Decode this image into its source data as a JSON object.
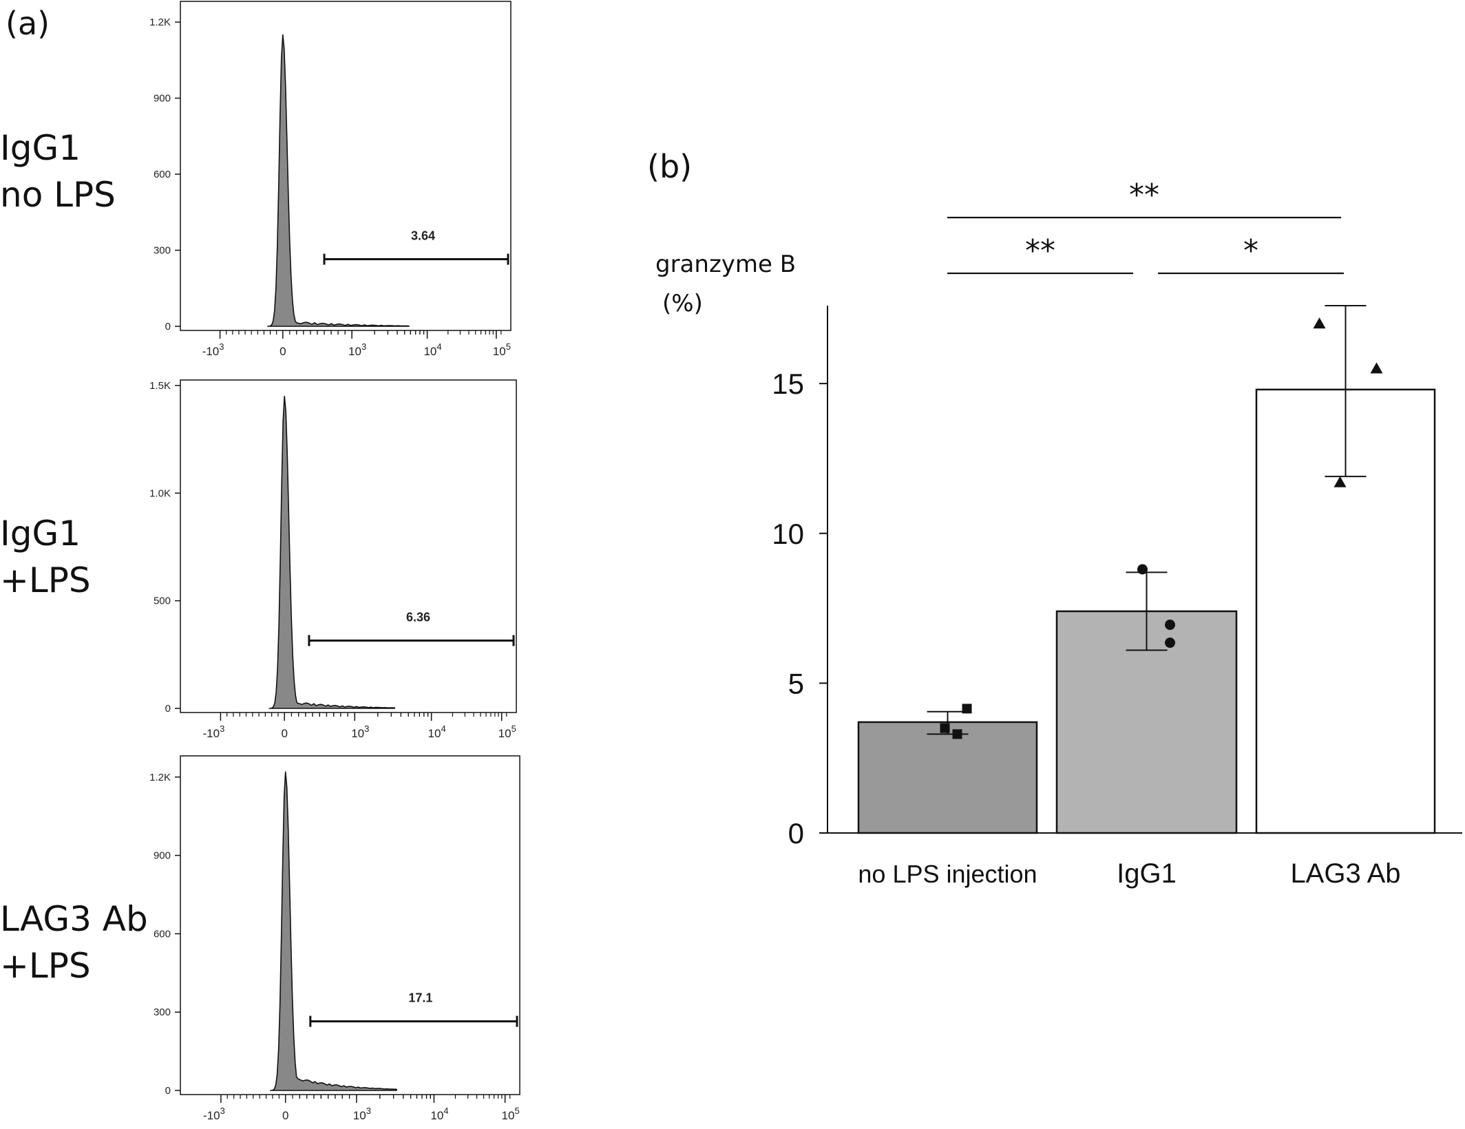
{
  "panel_a_label": "(a)",
  "panel_b_label": "(b)",
  "chart_data": [
    {
      "type": "area",
      "row_label": [
        "IgG1",
        "no LPS"
      ],
      "ytick_labels": [
        "0",
        "300",
        "600",
        "900",
        "1.2K"
      ],
      "ytick_values": [
        0,
        300,
        600,
        900,
        1200
      ],
      "ylim": [
        0,
        1260
      ],
      "peak_count": 1150,
      "peak_x": 0,
      "gate_percent_label": "3.64",
      "gate_percent": 3.64,
      "gate_range_x": [
        600,
        200000
      ]
    },
    {
      "type": "area",
      "row_label": [
        "IgG1",
        "+LPS"
      ],
      "ytick_labels": [
        "0",
        "500",
        "1.0K",
        "1.5K"
      ],
      "ytick_values": [
        0,
        500,
        1000,
        1500
      ],
      "ylim": [
        0,
        1500
      ],
      "peak_count": 1450,
      "peak_x": 0,
      "gate_percent_label": "6.36",
      "gate_percent": 6.36,
      "gate_range_x": [
        350,
        200000
      ]
    },
    {
      "type": "area",
      "row_label": [
        "LAG3 Ab",
        "+LPS"
      ],
      "ytick_labels": [
        "0",
        "300",
        "600",
        "900",
        "1.2K"
      ],
      "ytick_values": [
        0,
        300,
        600,
        900,
        1200
      ],
      "ylim": [
        0,
        1260
      ],
      "peak_count": 1220,
      "peak_x": 0,
      "gate_percent_label": "17.1",
      "gate_percent": 17.1,
      "gate_range_x": [
        350,
        200000
      ]
    },
    {
      "type": "bar",
      "ylabel": [
        "granzyme B",
        "(%)"
      ],
      "categories": [
        "no LPS injection",
        "IgG1",
        "LAG3 Ab"
      ],
      "values": [
        3.7,
        7.4,
        14.8
      ],
      "error": [
        [
          3.3,
          4.05
        ],
        [
          6.1,
          8.7
        ],
        [
          11.9,
          17.6
        ]
      ],
      "bar_colors": [
        "#999999",
        "#b3b3b3",
        "#ffffff"
      ],
      "points": [
        {
          "category": "no LPS injection",
          "marker": "square",
          "values": [
            4.15,
            3.5,
            3.3
          ]
        },
        {
          "category": "IgG1",
          "marker": "circle",
          "values": [
            8.8,
            6.95,
            6.35
          ]
        },
        {
          "category": "LAG3 Ab",
          "marker": "triangle",
          "values": [
            17.0,
            15.5,
            11.7
          ]
        }
      ],
      "ylim": [
        0,
        17.6
      ],
      "yticks": [
        0,
        5,
        10,
        15
      ],
      "significance": [
        {
          "from": "no LPS injection",
          "to": "LAG3 Ab",
          "label": "**"
        },
        {
          "from": "no LPS injection",
          "to": "IgG1",
          "label": "**"
        },
        {
          "from": "IgG1",
          "to": "LAG3 Ab",
          "label": "*"
        }
      ]
    }
  ]
}
